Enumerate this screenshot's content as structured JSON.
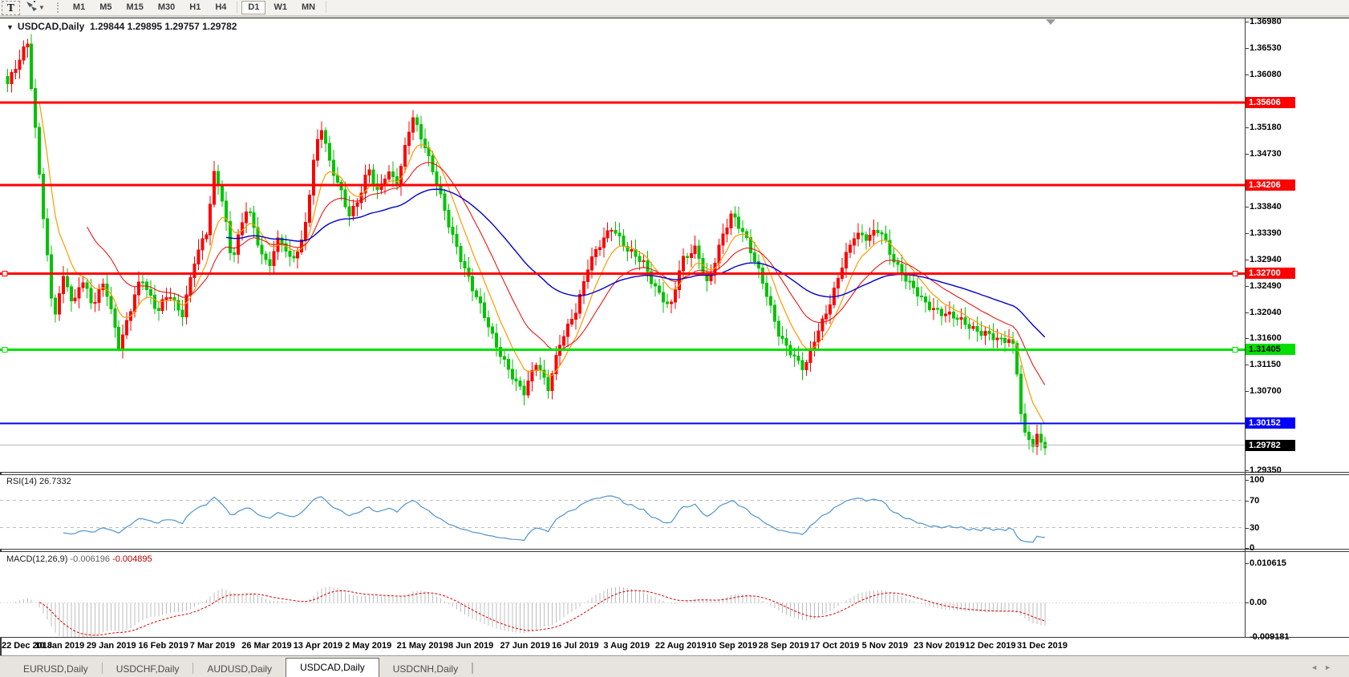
{
  "toolbar": {
    "text_tool_label": "T",
    "timeframes": [
      "M1",
      "M5",
      "M15",
      "M30",
      "H1",
      "H4",
      "D1",
      "W1",
      "MN"
    ],
    "active_timeframe": "D1"
  },
  "chart": {
    "collapse_icon": "▼",
    "title_symbol": "USDCAD,Daily",
    "title_ohlc": "1.29844 1.29895 1.29757 1.29782",
    "bars": 262,
    "price_axis_ticks": [
      "1.36980",
      "1.36530",
      "1.36080",
      "1.35180",
      "1.34730",
      "1.33840",
      "1.33390",
      "1.32940",
      "1.32490",
      "1.32040",
      "1.31600",
      "1.31150",
      "1.30700",
      "1.29350"
    ],
    "levels": [
      {
        "price": 1.35606,
        "label": "1.35606",
        "color": "#ff0000",
        "text": "#ffffff",
        "width": 3,
        "handles": false
      },
      {
        "price": 1.34206,
        "label": "1.34206",
        "color": "#ff0000",
        "text": "#ffffff",
        "width": 3,
        "handles": false
      },
      {
        "price": 1.327,
        "label": "1.32700",
        "color": "#ff0000",
        "text": "#ffffff",
        "width": 3,
        "handles": true
      },
      {
        "price": 1.31405,
        "label": "1.31405",
        "color": "#00e000",
        "text": "#000000",
        "width": 3,
        "handles": true
      },
      {
        "price": 1.30152,
        "label": "1.30152",
        "color": "#0000ff",
        "text": "#ffffff",
        "width": 2,
        "handles": false
      }
    ],
    "current_price": {
      "value": 1.29782,
      "label": "1.29782",
      "line_color": "#b8b8b8",
      "bg": "#000000",
      "text": "#ffffff"
    },
    "colors": {
      "bull": "#ff0000",
      "bear": "#00c400",
      "ma_fast": "#ff9900",
      "ma_mid": "#ee0000",
      "ma_slow": "#0000cc"
    },
    "ma_periods": {
      "fast": 8,
      "mid": 20,
      "slow": 55
    },
    "anchors": [
      [
        0.0,
        1.359
      ],
      [
        0.019,
        1.3668
      ],
      [
        0.032,
        1.341
      ],
      [
        0.044,
        1.3192
      ],
      [
        0.055,
        1.3275
      ],
      [
        0.063,
        1.321
      ],
      [
        0.071,
        1.326
      ],
      [
        0.082,
        1.3215
      ],
      [
        0.093,
        1.326
      ],
      [
        0.108,
        1.314
      ],
      [
        0.122,
        1.323
      ],
      [
        0.129,
        1.3268
      ],
      [
        0.144,
        1.3203
      ],
      [
        0.156,
        1.3235
      ],
      [
        0.168,
        1.32
      ],
      [
        0.18,
        1.329
      ],
      [
        0.192,
        1.334
      ],
      [
        0.2,
        1.345
      ],
      [
        0.208,
        1.339
      ],
      [
        0.216,
        1.329
      ],
      [
        0.231,
        1.3384
      ],
      [
        0.246,
        1.33
      ],
      [
        0.252,
        1.3285
      ],
      [
        0.262,
        1.333
      ],
      [
        0.273,
        1.329
      ],
      [
        0.285,
        1.333
      ],
      [
        0.296,
        1.347
      ],
      [
        0.302,
        1.352
      ],
      [
        0.31,
        1.346
      ],
      [
        0.322,
        1.341
      ],
      [
        0.33,
        1.3367
      ],
      [
        0.34,
        1.34
      ],
      [
        0.348,
        1.345
      ],
      [
        0.356,
        1.341
      ],
      [
        0.366,
        1.3445
      ],
      [
        0.376,
        1.342
      ],
      [
        0.39,
        1.354
      ],
      [
        0.402,
        1.349
      ],
      [
        0.425,
        1.3354
      ],
      [
        0.448,
        1.3245
      ],
      [
        0.471,
        1.315
      ],
      [
        0.49,
        1.3082
      ],
      [
        0.498,
        1.3066
      ],
      [
        0.51,
        1.3123
      ],
      [
        0.521,
        1.3075
      ],
      [
        0.533,
        1.315
      ],
      [
        0.548,
        1.321
      ],
      [
        0.56,
        1.3285
      ],
      [
        0.583,
        1.3351
      ],
      [
        0.598,
        1.331
      ],
      [
        0.613,
        1.3285
      ],
      [
        0.621,
        1.3258
      ],
      [
        0.639,
        1.321
      ],
      [
        0.65,
        1.329
      ],
      [
        0.664,
        1.3317
      ],
      [
        0.675,
        1.3249
      ],
      [
        0.689,
        1.333
      ],
      [
        0.698,
        1.3374
      ],
      [
        0.71,
        1.334
      ],
      [
        0.718,
        1.33
      ],
      [
        0.729,
        1.3249
      ],
      [
        0.744,
        1.3167
      ],
      [
        0.76,
        1.312
      ],
      [
        0.768,
        1.3106
      ],
      [
        0.779,
        1.3167
      ],
      [
        0.794,
        1.3221
      ],
      [
        0.806,
        1.329
      ],
      [
        0.817,
        1.3341
      ],
      [
        0.829,
        1.333
      ],
      [
        0.841,
        1.3343
      ],
      [
        0.852,
        1.3302
      ],
      [
        0.868,
        1.3255
      ],
      [
        0.883,
        1.3221
      ],
      [
        0.898,
        1.3207
      ],
      [
        0.914,
        1.3193
      ],
      [
        0.929,
        1.318
      ],
      [
        0.944,
        1.3167
      ],
      [
        0.956,
        1.3153
      ],
      [
        0.965,
        1.316
      ],
      [
        0.971,
        1.3146
      ],
      [
        0.979,
        1.2998
      ],
      [
        0.984,
        1.2991
      ],
      [
        0.988,
        1.2975
      ],
      [
        0.992,
        1.299
      ],
      [
        0.996,
        1.2982
      ],
      [
        1.0,
        1.2978
      ]
    ]
  },
  "rsi": {
    "label": "RSI(14)",
    "value": "26.7332",
    "period": 14,
    "line_color": "#4f94cd",
    "level_lines": [
      70,
      30
    ],
    "axis_ticks": [
      {
        "v": 100,
        "label": "100"
      },
      {
        "v": 70,
        "label": "70"
      },
      {
        "v": 30,
        "label": "30"
      },
      {
        "v": 0,
        "label": "0"
      }
    ]
  },
  "macd": {
    "label": "MACD(12,26,9)",
    "macd_value": "-0.006196",
    "signal_value": "-0.004895",
    "fast": 12,
    "slow": 26,
    "signal": 9,
    "histogram_color": "#bdbdbd",
    "signal_color": "#dd0000",
    "max": 0.010615,
    "min": -0.009181,
    "axis_ticks": [
      {
        "v": 0.010615,
        "label": "0.010615"
      },
      {
        "v": 0,
        "label": "0.00"
      },
      {
        "v": -0.009181,
        "label": "-0.009181"
      }
    ]
  },
  "date_axis": {
    "labels": [
      "22 Dec 2018",
      "10 Jan 2019",
      "29 Jan 2019",
      "16 Feb 2019",
      "7 Mar 2019",
      "26 Mar 2019",
      "13 Apr 2019",
      "2 May 2019",
      "21 May 2019",
      "8 Jun 2019",
      "27 Jun 2019",
      "16 Jul 2019",
      "3 Aug 2019",
      "22 Aug 2019",
      "10 Sep 2019",
      "28 Sep 2019",
      "17 Oct 2019",
      "5 Nov 2019",
      "23 Nov 2019",
      "12 Dec 2019",
      "31 Dec 2019"
    ]
  },
  "tab_bar": {
    "scroll_left_icon": "◄",
    "scroll_right_icon": "►",
    "items": [
      {
        "label": "EURUSD,Daily",
        "active": false
      },
      {
        "label": "USDCHF,Daily",
        "active": false
      },
      {
        "label": "AUDUSD,Daily",
        "active": false
      },
      {
        "label": "USDCAD,Daily",
        "active": true
      },
      {
        "label": "USDCNH,Daily",
        "active": false
      }
    ]
  }
}
